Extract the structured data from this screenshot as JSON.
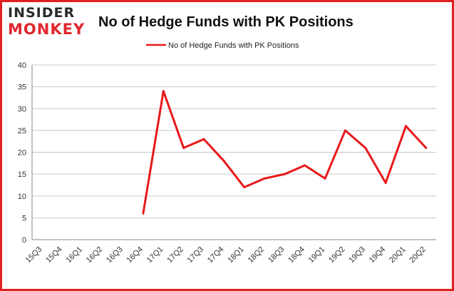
{
  "logo": {
    "line1": "INSIDER",
    "line2": "MONKEY"
  },
  "chart_data": {
    "type": "line",
    "title": "No of Hedge Funds with PK Positions",
    "categories": [
      "15Q3",
      "15Q4",
      "16Q1",
      "16Q2",
      "16Q3",
      "16Q4",
      "17Q1",
      "17Q2",
      "17Q3",
      "17Q4",
      "18Q1",
      "18Q2",
      "18Q3",
      "18Q4",
      "19Q1",
      "19Q2",
      "19Q3",
      "19Q4",
      "20Q1",
      "20Q2"
    ],
    "series": [
      {
        "name": "No of Hedge Funds with PK Positions",
        "color": "#e8191b",
        "values": [
          null,
          null,
          null,
          null,
          null,
          6,
          34,
          21,
          23,
          18,
          12,
          14,
          15,
          17,
          14,
          25,
          21,
          13,
          26,
          21
        ]
      }
    ],
    "ylim": [
      0,
      40
    ],
    "yticks": [
      0,
      5,
      10,
      15,
      20,
      25,
      30,
      35,
      40
    ],
    "grid": true,
    "legend": "top-center",
    "xlabel": "",
    "ylabel": ""
  }
}
